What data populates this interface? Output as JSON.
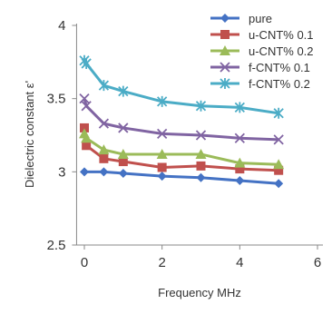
{
  "chart_data": {
    "type": "line",
    "title": "",
    "xlabel": "Frequency MHz",
    "ylabel": "Dielectric constant ε'",
    "xlim": [
      -0.2,
      6
    ],
    "ylim": [
      2.5,
      4
    ],
    "xticks": [
      "0",
      "2",
      "4",
      "6"
    ],
    "yticks": [
      "2.5",
      "3",
      "3.5",
      "4"
    ],
    "grid": false,
    "legend_position": "top-right",
    "series": [
      {
        "name": "pure",
        "color": "#4472c4",
        "marker": "diamond",
        "x": [
          0,
          0.5,
          1,
          2,
          3,
          4,
          5
        ],
        "y": [
          3.0,
          3.0,
          2.99,
          2.97,
          2.96,
          2.94,
          2.92
        ]
      },
      {
        "name": "u-CNT% 0.1",
        "color": "#c0504d",
        "marker": "square",
        "x": [
          0,
          0.05,
          0.5,
          1,
          2,
          3,
          4,
          5
        ],
        "y": [
          3.3,
          3.18,
          3.09,
          3.07,
          3.03,
          3.04,
          3.02,
          3.01
        ]
      },
      {
        "name": "u-CNT% 0.2",
        "color": "#9bbb59",
        "marker": "triangle",
        "x": [
          0,
          0.05,
          0.5,
          1,
          2,
          3,
          4,
          5
        ],
        "y": [
          3.26,
          3.23,
          3.15,
          3.12,
          3.12,
          3.12,
          3.06,
          3.05
        ]
      },
      {
        "name": "f-CNT% 0.1",
        "color": "#8064a2",
        "marker": "x",
        "x": [
          0,
          0.05,
          0.5,
          1,
          2,
          3,
          4,
          5
        ],
        "y": [
          3.5,
          3.45,
          3.33,
          3.3,
          3.26,
          3.25,
          3.23,
          3.22
        ]
      },
      {
        "name": "f-CNT% 0.2",
        "color": "#4bacc6",
        "marker": "star",
        "x": [
          0,
          0.05,
          0.5,
          1,
          2,
          3,
          4,
          5
        ],
        "y": [
          3.76,
          3.74,
          3.59,
          3.55,
          3.48,
          3.45,
          3.44,
          3.4
        ]
      }
    ]
  }
}
